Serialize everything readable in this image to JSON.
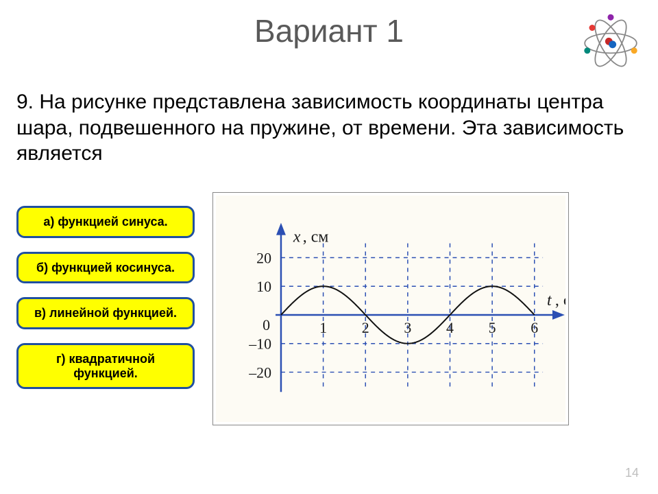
{
  "title": "Вариант 1",
  "question_text": "9. На рисунке представлена зависимость координаты центра шара, подвешенного на пружине, от времени. Эта зависимость является",
  "answers": [
    "а) функцией синуса.",
    "б) функцией косинуса.",
    "в) линейной функцией.",
    "г) квадратичной функцией."
  ],
  "page_number": "14",
  "atom": {
    "nucleus_colors": [
      "#c62828",
      "#1565c0"
    ],
    "electron_colors": [
      "#8e24aa",
      "#f9a825",
      "#00897b",
      "#e53935"
    ]
  },
  "chart": {
    "type": "line",
    "x_axis_label": "t, с",
    "y_axis_label": "x, см",
    "background_color": "#fdfbf4",
    "axis_color": "#2b4fb3",
    "grid_color": "#2b4fb3",
    "curve_color": "#111111",
    "tick_color": "#1a1a1a",
    "x_ticks": [
      0,
      1,
      2,
      3,
      4,
      5,
      6
    ],
    "y_ticks": [
      -20,
      -10,
      0,
      10,
      20
    ],
    "xlim": [
      0,
      6.2
    ],
    "ylim": [
      -25,
      25
    ],
    "amplitude": 10,
    "period": 4,
    "curve_width": 2,
    "axis_width": 2.5,
    "grid_dash": "6 6",
    "tick_fontsize": 22,
    "axis_label_fontsize": 24
  }
}
